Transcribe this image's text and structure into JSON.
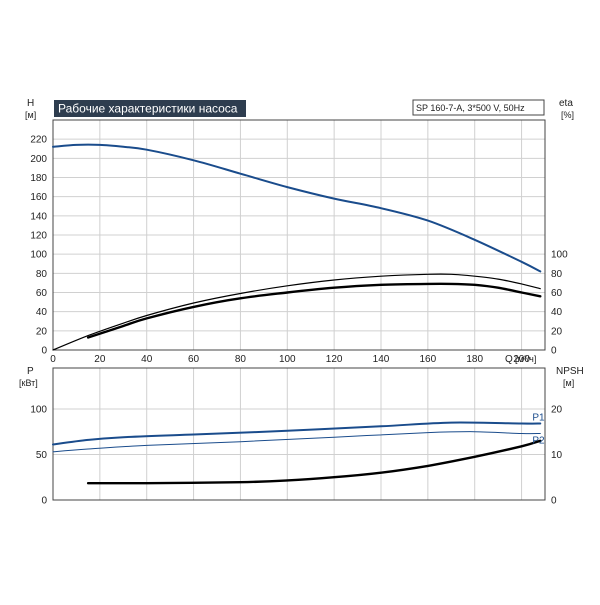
{
  "title": "Рабочие характеристики насоса",
  "model_label": "SP 160-7-A, 3*500 V, 50Hz",
  "colors": {
    "blue": "#1a4c8c",
    "black": "#000000",
    "title_bg": "#2e3d4f",
    "grid": "#d0d0d0"
  },
  "chart_data": [
    {
      "type": "line",
      "name": "top-panel",
      "xlabel": "Q",
      "xunit": "[м³/ч]",
      "xlim": [
        0,
        210
      ],
      "xticks": [
        0,
        20,
        40,
        60,
        80,
        100,
        120,
        140,
        160,
        180,
        200
      ],
      "ylabel_left": "H",
      "yunit_left": "[м]",
      "ylim_left": [
        0,
        240
      ],
      "yticks_left": [
        0,
        20,
        40,
        60,
        80,
        100,
        120,
        140,
        160,
        180,
        200,
        220
      ],
      "ylabel_right": "eta",
      "yunit_right": "[%]",
      "ylim_right": [
        0,
        240
      ],
      "yticks_right": [
        0,
        20,
        40,
        60,
        80,
        100
      ],
      "grid": true,
      "series": [
        {
          "color": "#1a4c8c",
          "width": 2,
          "axis": "left",
          "x": [
            0,
            10,
            20,
            30,
            40,
            60,
            80,
            100,
            120,
            140,
            160,
            180,
            200,
            208
          ],
          "y": [
            212,
            214,
            214,
            212,
            209,
            198,
            184,
            170,
            158,
            148,
            135,
            115,
            92,
            82
          ]
        },
        {
          "color": "#000000",
          "width": 1.2,
          "axis": "right",
          "x": [
            0,
            15,
            30,
            40,
            60,
            80,
            100,
            120,
            140,
            160,
            170,
            180,
            190,
            200,
            208
          ],
          "y": [
            0,
            15,
            28,
            36,
            49,
            59,
            67,
            73,
            77,
            79,
            79,
            77,
            74,
            69,
            64
          ]
        },
        {
          "color": "#000000",
          "width": 2.4,
          "axis": "right",
          "x": [
            15,
            30,
            40,
            60,
            80,
            100,
            120,
            140,
            160,
            170,
            180,
            190,
            200,
            208
          ],
          "y": [
            13,
            25,
            33,
            45,
            54,
            60,
            65,
            68,
            69,
            69,
            68,
            65,
            60,
            56
          ]
        }
      ]
    },
    {
      "type": "line",
      "name": "bottom-panel",
      "xlim": [
        0,
        210
      ],
      "xticks": [
        0,
        20,
        40,
        60,
        80,
        100,
        120,
        140,
        160,
        180,
        200
      ],
      "ylabel_left": "P",
      "yunit_left": "[кВт]",
      "ylim_left": [
        0,
        145
      ],
      "yticks_left": [
        0,
        50,
        100
      ],
      "ylabel_right": "NPSH",
      "yunit_right": "[м]",
      "ylim_right": [
        0,
        29
      ],
      "yticks_right": [
        0,
        10,
        20
      ],
      "grid": true,
      "series": [
        {
          "name": "P1",
          "color": "#1a4c8c",
          "width": 2,
          "axis": "left",
          "x": [
            0,
            15,
            30,
            60,
            100,
            140,
            170,
            200,
            208
          ],
          "y": [
            61,
            66,
            69,
            72,
            76,
            81,
            85,
            84,
            84
          ]
        },
        {
          "name": "P2",
          "color": "#1a4c8c",
          "width": 1,
          "axis": "left",
          "x": [
            0,
            15,
            40,
            80,
            120,
            160,
            180,
            200,
            208
          ],
          "y": [
            53,
            56,
            60,
            64,
            69,
            74,
            75,
            73,
            73
          ]
        },
        {
          "color": "#000000",
          "width": 2.4,
          "axis": "right",
          "x": [
            15,
            40,
            80,
            100,
            120,
            140,
            160,
            180,
            200,
            208
          ],
          "y": [
            3.7,
            3.7,
            3.9,
            4.3,
            5.0,
            6.0,
            7.5,
            9.5,
            11.8,
            13.0
          ]
        }
      ]
    }
  ]
}
